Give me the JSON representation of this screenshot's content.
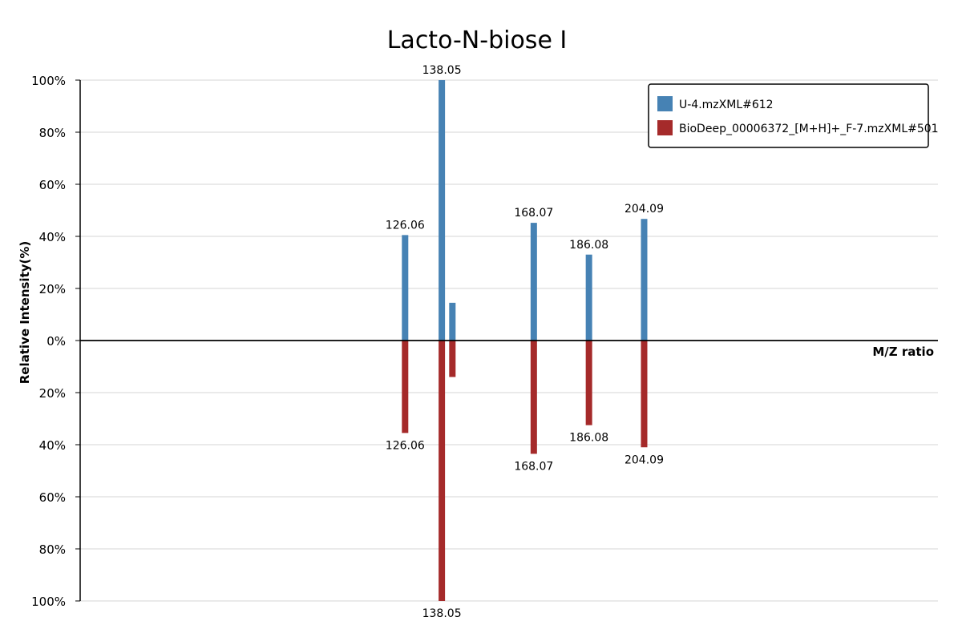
{
  "chart_data": {
    "type": "bar",
    "title": "Lacto-N-biose I",
    "xlabel": "M/Z ratio",
    "ylabel": "Relative Intensity(%)",
    "ylim": [
      -100,
      100
    ],
    "y_ticks": [
      "100%",
      "80%",
      "60%",
      "40%",
      "20%",
      "0%",
      "20%",
      "40%",
      "60%",
      "80%",
      "100%"
    ],
    "xlim": [
      20,
      300
    ],
    "grid": true,
    "legend_position": "top-right",
    "series": [
      {
        "name": "U-4.mzXML#612",
        "color": "#4682B4",
        "direction": "up",
        "points": [
          {
            "mz": 126.06,
            "intensity": 40.5,
            "label": "126.06"
          },
          {
            "mz": 138.05,
            "intensity": 100,
            "label": "138.05"
          },
          {
            "mz": 141.5,
            "intensity": 14.5,
            "label": ""
          },
          {
            "mz": 168.07,
            "intensity": 45.2,
            "label": "168.07"
          },
          {
            "mz": 186.08,
            "intensity": 33.0,
            "label": "186.08"
          },
          {
            "mz": 204.09,
            "intensity": 46.7,
            "label": "204.09"
          }
        ]
      },
      {
        "name": "BioDeep_00006372_[M+H]+_F-7.mzXML#501",
        "color": "#A52A2A",
        "direction": "down",
        "points": [
          {
            "mz": 126.06,
            "intensity": 35.5,
            "label": "126.06"
          },
          {
            "mz": 138.05,
            "intensity": 100,
            "label": "138.05"
          },
          {
            "mz": 141.5,
            "intensity": 14.0,
            "label": ""
          },
          {
            "mz": 168.07,
            "intensity": 43.5,
            "label": "168.07"
          },
          {
            "mz": 186.08,
            "intensity": 32.5,
            "label": "186.08"
          },
          {
            "mz": 204.09,
            "intensity": 41.0,
            "label": "204.09"
          }
        ]
      }
    ]
  }
}
